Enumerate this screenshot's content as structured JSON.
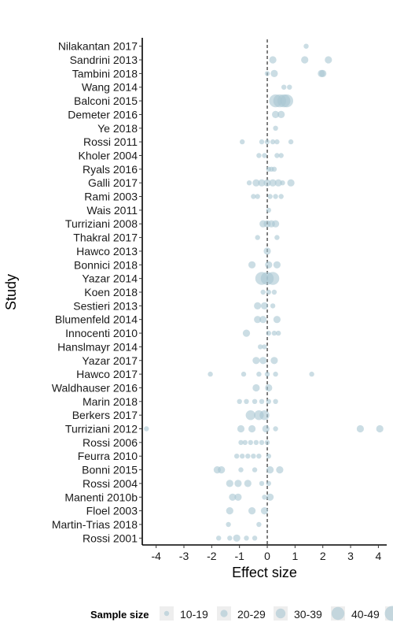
{
  "chart_data": {
    "type": "scatter",
    "xlabel": "Effect size",
    "ylabel": "Study",
    "xlim": [
      -4.5,
      4.3
    ],
    "x_ticks": [
      -4,
      -3,
      -2,
      -1,
      0,
      1,
      2,
      3,
      4
    ],
    "reference_line": 0,
    "point_color": "#a9c6d2",
    "studies": [
      {
        "name": "Nilakantan",
        "year": "2017",
        "points": [
          {
            "x": 1.4,
            "s": 1
          }
        ]
      },
      {
        "name": "Sandrini",
        "year": "2013",
        "points": [
          {
            "x": 0.2,
            "s": 2
          },
          {
            "x": 1.35,
            "s": 2
          },
          {
            "x": 2.2,
            "s": 2
          }
        ]
      },
      {
        "name": "Tambini",
        "year": "2018",
        "points": [
          {
            "x": 0.0,
            "s": 1
          },
          {
            "x": 0.25,
            "s": 2
          },
          {
            "x": 1.95,
            "s": 2
          },
          {
            "x": 2.0,
            "s": 2
          }
        ]
      },
      {
        "name": "Wang",
        "year": "2014",
        "points": [
          {
            "x": 0.6,
            "s": 1
          },
          {
            "x": 0.8,
            "s": 1
          }
        ]
      },
      {
        "name": "Balconi",
        "year": "2015",
        "points": [
          {
            "x": 0.3,
            "s": 4
          },
          {
            "x": 0.45,
            "s": 4
          },
          {
            "x": 0.6,
            "s": 4
          },
          {
            "x": 0.7,
            "s": 4
          }
        ]
      },
      {
        "name": "Demeter",
        "year": "2016",
        "points": [
          {
            "x": 0.3,
            "s": 2
          },
          {
            "x": 0.5,
            "s": 2
          }
        ]
      },
      {
        "name": "Ye",
        "year": "2018",
        "points": [
          {
            "x": 0.3,
            "s": 1
          }
        ]
      },
      {
        "name": "Rossi",
        "year": "2011",
        "points": [
          {
            "x": -0.9,
            "s": 1
          },
          {
            "x": -0.2,
            "s": 1
          },
          {
            "x": 0.0,
            "s": 1
          },
          {
            "x": 0.2,
            "s": 1
          },
          {
            "x": 0.35,
            "s": 1
          },
          {
            "x": 0.85,
            "s": 1
          }
        ]
      },
      {
        "name": "Kholer",
        "year": "2004",
        "points": [
          {
            "x": -0.3,
            "s": 1
          },
          {
            "x": -0.1,
            "s": 1
          },
          {
            "x": 0.35,
            "s": 1
          },
          {
            "x": 0.5,
            "s": 1
          }
        ]
      },
      {
        "name": "Ryals",
        "year": "2016",
        "points": [
          {
            "x": 0.05,
            "s": 1
          },
          {
            "x": 0.15,
            "s": 1
          },
          {
            "x": 0.25,
            "s": 1
          }
        ]
      },
      {
        "name": "Galli",
        "year": "2017",
        "points": [
          {
            "x": -0.65,
            "s": 1
          },
          {
            "x": -0.4,
            "s": 2
          },
          {
            "x": -0.2,
            "s": 2
          },
          {
            "x": 0.0,
            "s": 2
          },
          {
            "x": 0.2,
            "s": 2
          },
          {
            "x": 0.4,
            "s": 2
          },
          {
            "x": 0.55,
            "s": 1
          },
          {
            "x": 0.85,
            "s": 2
          }
        ]
      },
      {
        "name": "Rami",
        "year": "2003",
        "points": [
          {
            "x": -0.5,
            "s": 1
          },
          {
            "x": -0.35,
            "s": 1
          },
          {
            "x": 0.1,
            "s": 1
          },
          {
            "x": 0.3,
            "s": 1
          },
          {
            "x": 0.5,
            "s": 1
          }
        ]
      },
      {
        "name": "Wais",
        "year": "2011",
        "points": [
          {
            "x": 0.05,
            "s": 1
          }
        ]
      },
      {
        "name": "Turriziani",
        "year": "2008",
        "points": [
          {
            "x": -0.15,
            "s": 2
          },
          {
            "x": 0.0,
            "s": 2
          },
          {
            "x": 0.15,
            "s": 2
          },
          {
            "x": 0.3,
            "s": 2
          }
        ]
      },
      {
        "name": "Thakral",
        "year": "2017",
        "points": [
          {
            "x": -0.35,
            "s": 1
          },
          {
            "x": 0.35,
            "s": 1
          }
        ]
      },
      {
        "name": "Hawco",
        "year": "2013",
        "points": [
          {
            "x": 0.0,
            "s": 2
          }
        ]
      },
      {
        "name": "Bonnici",
        "year": "2018",
        "points": [
          {
            "x": -0.55,
            "s": 2
          },
          {
            "x": 0.05,
            "s": 2
          },
          {
            "x": 0.35,
            "s": 2
          }
        ]
      },
      {
        "name": "Yazar",
        "year": "2014",
        "points": [
          {
            "x": -0.2,
            "s": 4
          },
          {
            "x": 0.0,
            "s": 4
          },
          {
            "x": 0.2,
            "s": 4
          }
        ]
      },
      {
        "name": "Koen",
        "year": "2018",
        "points": [
          {
            "x": -0.15,
            "s": 1
          },
          {
            "x": 0.05,
            "s": 1
          },
          {
            "x": 0.25,
            "s": 1
          }
        ]
      },
      {
        "name": "Sestieri",
        "year": "2013",
        "points": [
          {
            "x": -0.35,
            "s": 2
          },
          {
            "x": -0.1,
            "s": 2
          },
          {
            "x": 0.2,
            "s": 1
          }
        ]
      },
      {
        "name": "Blumenfeld",
        "year": "2014",
        "points": [
          {
            "x": -0.35,
            "s": 2
          },
          {
            "x": -0.15,
            "s": 2
          },
          {
            "x": 0.35,
            "s": 2
          }
        ]
      },
      {
        "name": "Innocenti",
        "year": "2010",
        "points": [
          {
            "x": -0.75,
            "s": 2
          },
          {
            "x": 0.05,
            "s": 1
          },
          {
            "x": 0.25,
            "s": 1
          },
          {
            "x": 0.4,
            "s": 1
          }
        ]
      },
      {
        "name": "Hanslmayr",
        "year": "2014",
        "points": [
          {
            "x": -0.25,
            "s": 1
          },
          {
            "x": -0.1,
            "s": 1
          }
        ]
      },
      {
        "name": "Yazar",
        "year": "2017",
        "points": [
          {
            "x": -0.4,
            "s": 2
          },
          {
            "x": -0.15,
            "s": 2
          },
          {
            "x": 0.25,
            "s": 2
          }
        ]
      },
      {
        "name": "Hawco",
        "year": "2017",
        "points": [
          {
            "x": -2.05,
            "s": 1
          },
          {
            "x": -0.85,
            "s": 1
          },
          {
            "x": -0.3,
            "s": 1
          },
          {
            "x": 0.0,
            "s": 1
          },
          {
            "x": 0.3,
            "s": 1
          },
          {
            "x": 1.6,
            "s": 1
          }
        ]
      },
      {
        "name": "Waldhauser",
        "year": "2016",
        "points": [
          {
            "x": -0.4,
            "s": 2
          },
          {
            "x": 0.05,
            "s": 2
          }
        ]
      },
      {
        "name": "Marin",
        "year": "2018",
        "points": [
          {
            "x": -1.0,
            "s": 1
          },
          {
            "x": -0.75,
            "s": 1
          },
          {
            "x": -0.45,
            "s": 1
          },
          {
            "x": -0.2,
            "s": 1
          },
          {
            "x": 0.05,
            "s": 1
          },
          {
            "x": 0.3,
            "s": 1
          }
        ]
      },
      {
        "name": "Berkers",
        "year": "2017",
        "points": [
          {
            "x": -0.6,
            "s": 3
          },
          {
            "x": -0.3,
            "s": 3
          },
          {
            "x": -0.1,
            "s": 3
          }
        ]
      },
      {
        "name": "Turriziani",
        "year": "2012",
        "points": [
          {
            "x": -4.35,
            "s": 1
          },
          {
            "x": -0.95,
            "s": 2
          },
          {
            "x": -0.55,
            "s": 2
          },
          {
            "x": -0.05,
            "s": 2
          },
          {
            "x": 0.3,
            "s": 1
          },
          {
            "x": 3.35,
            "s": 2
          },
          {
            "x": 4.05,
            "s": 2
          }
        ]
      },
      {
        "name": "Rossi",
        "year": "2006",
        "points": [
          {
            "x": -0.95,
            "s": 1
          },
          {
            "x": -0.8,
            "s": 1
          },
          {
            "x": -0.6,
            "s": 1
          },
          {
            "x": -0.4,
            "s": 1
          },
          {
            "x": -0.2,
            "s": 1
          },
          {
            "x": 0.0,
            "s": 1
          }
        ]
      },
      {
        "name": "Feurra",
        "year": "2010",
        "points": [
          {
            "x": -1.1,
            "s": 1
          },
          {
            "x": -0.9,
            "s": 1
          },
          {
            "x": -0.7,
            "s": 1
          },
          {
            "x": -0.5,
            "s": 1
          },
          {
            "x": -0.3,
            "s": 1
          },
          {
            "x": 0.05,
            "s": 1
          }
        ]
      },
      {
        "name": "Bonni",
        "year": "2015",
        "points": [
          {
            "x": -1.8,
            "s": 2
          },
          {
            "x": -1.65,
            "s": 2
          },
          {
            "x": -0.95,
            "s": 1
          },
          {
            "x": -0.45,
            "s": 1
          },
          {
            "x": 0.1,
            "s": 2
          },
          {
            "x": 0.45,
            "s": 2
          }
        ]
      },
      {
        "name": "Rossi",
        "year": "2004",
        "points": [
          {
            "x": -1.35,
            "s": 2
          },
          {
            "x": -1.05,
            "s": 2
          },
          {
            "x": -0.7,
            "s": 2
          },
          {
            "x": -0.2,
            "s": 1
          },
          {
            "x": 0.05,
            "s": 1
          }
        ]
      },
      {
        "name": "Manenti",
        "year": "2010b",
        "points": [
          {
            "x": -1.25,
            "s": 2
          },
          {
            "x": -1.05,
            "s": 2
          },
          {
            "x": -0.1,
            "s": 1
          },
          {
            "x": 0.1,
            "s": 2
          }
        ]
      },
      {
        "name": "Floel",
        "year": "2003",
        "points": [
          {
            "x": -1.35,
            "s": 2
          },
          {
            "x": -0.55,
            "s": 2
          },
          {
            "x": -0.1,
            "s": 2
          }
        ]
      },
      {
        "name": "Martin-Trias",
        "year": "2018",
        "points": [
          {
            "x": -1.4,
            "s": 1
          },
          {
            "x": -0.3,
            "s": 1
          }
        ]
      },
      {
        "name": "Rossi",
        "year": "2001",
        "points": [
          {
            "x": -1.75,
            "s": 1
          },
          {
            "x": -1.35,
            "s": 1
          },
          {
            "x": -1.1,
            "s": 2
          },
          {
            "x": -0.75,
            "s": 1
          },
          {
            "x": -0.45,
            "s": 1
          }
        ]
      }
    ],
    "legend": {
      "title": "Sample size",
      "placement": "bottom",
      "items": [
        "10-19",
        "20-29",
        "30-39",
        "40-49",
        ""
      ]
    }
  }
}
